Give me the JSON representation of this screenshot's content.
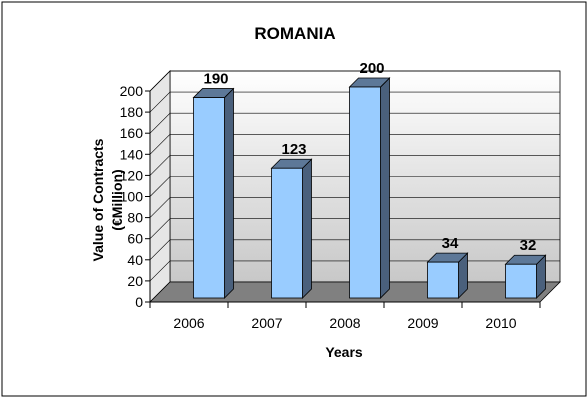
{
  "chart_data": {
    "type": "bar",
    "title": "ROMANIA",
    "xlabel": "Years",
    "ylabel_line1": "Value of Contracts",
    "ylabel_line2": "(€Million)",
    "categories": [
      "2006",
      "2007",
      "2008",
      "2009",
      "2010"
    ],
    "values": [
      190,
      123,
      200,
      34,
      32
    ],
    "ylim": [
      0,
      200
    ],
    "yticks": [
      "0",
      "20",
      "40",
      "60",
      "80",
      "100",
      "120",
      "140",
      "160",
      "180",
      "200"
    ],
    "data_labels": [
      "190",
      "123",
      "200",
      "34",
      "32"
    ],
    "grid": true,
    "legend": "none",
    "bar_color": "#99ccff",
    "bar_side_color": "#4a607c",
    "floor_color": "#808080"
  }
}
